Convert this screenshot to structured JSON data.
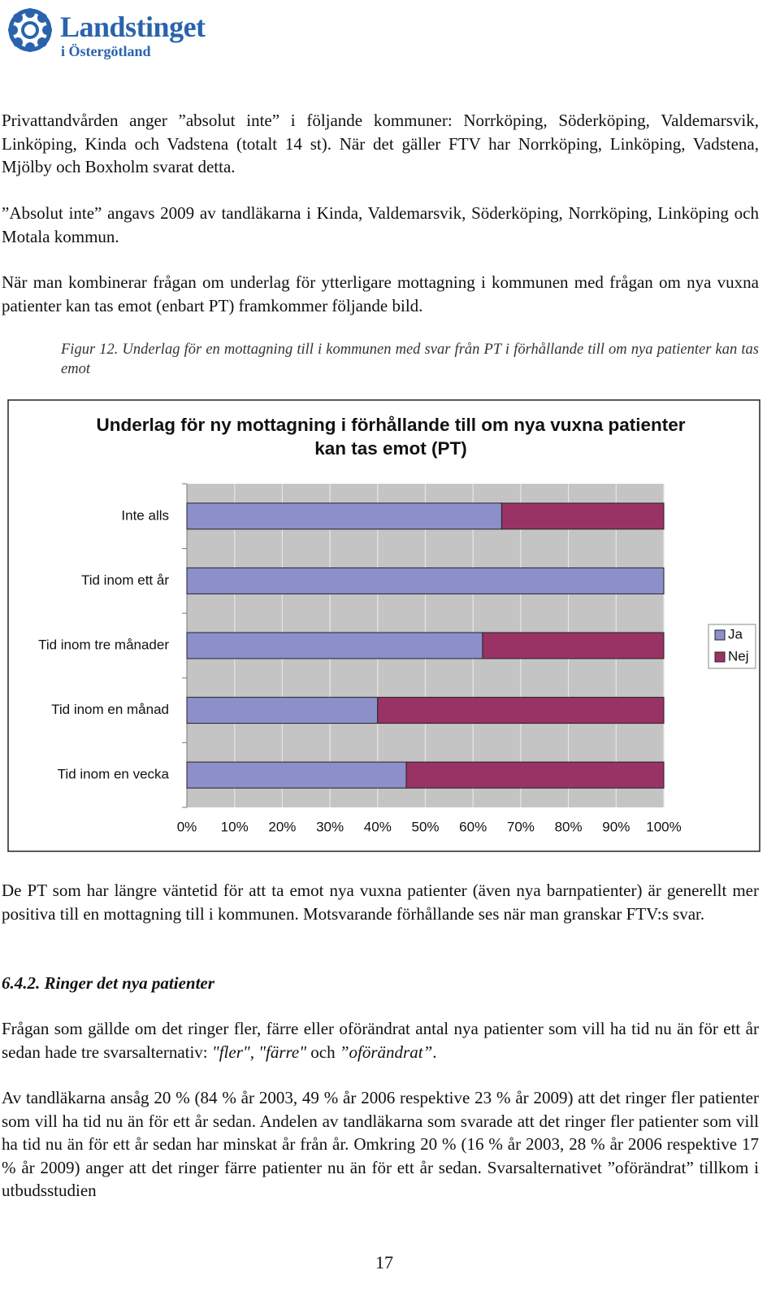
{
  "header": {
    "logo_title": "Landstinget",
    "logo_subtitle": "i Östergötland"
  },
  "paragraphs": [
    {
      "parts": [
        "Privattandvården anger ”absolut inte” i följande kommuner: Norrköping, Söderköping, Valdemarsvik, Linköping, Kinda och Vadstena (totalt 14 st). När det gäller FTV har Norrköping, Linköping, Vadstena, Mjölby och Boxholm svarat detta."
      ]
    },
    {
      "parts": [
        "”Absolut inte” angavs 2009 av tandläkarna i Kinda, Valdemarsvik, Söderköping, Norrköping, Linköping och Motala kommun."
      ]
    },
    {
      "parts": [
        "När man kombinerar frågan om underlag för ytterligare mottagning i kommunen med frågan om nya vuxna patienter kan tas emot (enbart PT) framkommer följande bild."
      ]
    }
  ],
  "caption": "Figur 12. Underlag för en mottagning till i kommunen med svar från PT i förhållande till om nya patienter kan tas emot",
  "chart_data": {
    "type": "bar",
    "title": "Underlag för ny mottagning i förhållande till om nya vuxna patienter kan tas emot (PT)",
    "categories": [
      "Inte alls",
      "Tid inom ett år",
      "Tid inom tre månader",
      "Tid inom en månad",
      "Tid inom en vecka"
    ],
    "series": [
      {
        "name": "Ja",
        "color": "#8c8fc9",
        "values": [
          66,
          100,
          62,
          40,
          46
        ]
      },
      {
        "name": "Nej",
        "color": "#993366",
        "values": [
          34,
          0,
          38,
          60,
          54
        ]
      }
    ],
    "xlim": [
      0,
      100
    ],
    "xticks": [
      {
        "value": 0,
        "label": "0%"
      },
      {
        "value": 10,
        "label": "10%"
      },
      {
        "value": 20,
        "label": "20%"
      },
      {
        "value": 30,
        "label": "30%"
      },
      {
        "value": 40,
        "label": "40%"
      },
      {
        "value": 50,
        "label": "50%"
      },
      {
        "value": 60,
        "label": "60%"
      },
      {
        "value": 70,
        "label": "70%"
      },
      {
        "value": 80,
        "label": "80%"
      },
      {
        "value": 90,
        "label": "90%"
      },
      {
        "value": 100,
        "label": "100%"
      }
    ],
    "grid": true,
    "legend": "right"
  },
  "after_chart": [
    {
      "parts": [
        "De PT som har längre väntetid för att ta emot nya vuxna patienter (även nya barnpatienter) är generellt mer positiva till en mottagning till i kommunen. Motsvarande förhållande ses när man granskar FTV:s svar."
      ]
    }
  ],
  "heading": "6.4.2. Ringer det nya patienter",
  "section_paragraphs": [
    {
      "parts": [
        "Frågan som gällde om det ringer fler, färre eller oförändrat antal nya patienter som vill ha tid nu än för ett år sedan hade tre svarsalternativ: ",
        "\"fler\", \"färre\"",
        " och ",
        "”oförändrat”",
        "."
      ]
    },
    {
      "parts": [
        "Av tandläkarna ansåg 20 % (84 % år 2003, 49 % år 2006 respektive 23 % år 2009) att det ringer fler patienter som vill ha tid nu än för ett år sedan. Andelen av tandläkarna som svarade att det ringer fler patienter som vill ha tid nu än för ett år sedan har minskat år från år. Omkring 20 % (16 % år 2003, 28 % år 2006 respektive 17 % år 2009) anger att det ringer färre patienter nu än för ett år sedan. Svarsalternativet ”oförändrat” tillkom i utbudsstudien"
      ]
    }
  ],
  "page_number": "17"
}
